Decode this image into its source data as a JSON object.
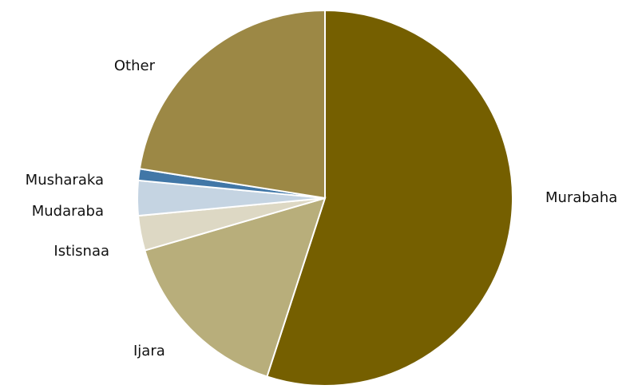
{
  "chart_data": {
    "type": "pie",
    "slices": [
      {
        "label": "Murabaha",
        "value": 55.0,
        "color": "#755F00"
      },
      {
        "label": "Ijara",
        "value": 15.5,
        "color": "#B8AE7B"
      },
      {
        "label": "Istisnaa",
        "value": 3.0,
        "color": "#DDD8C4"
      },
      {
        "label": "Mudaraba",
        "value": 3.0,
        "color": "#C5D4E2"
      },
      {
        "label": "Musharaka",
        "value": 1.0,
        "color": "#4177A7"
      },
      {
        "label": "Other",
        "value": 22.5,
        "color": "#9C8845"
      }
    ],
    "start_angle": "12 o'clock",
    "direction": "clockwise",
    "title": "",
    "legend": "none"
  }
}
